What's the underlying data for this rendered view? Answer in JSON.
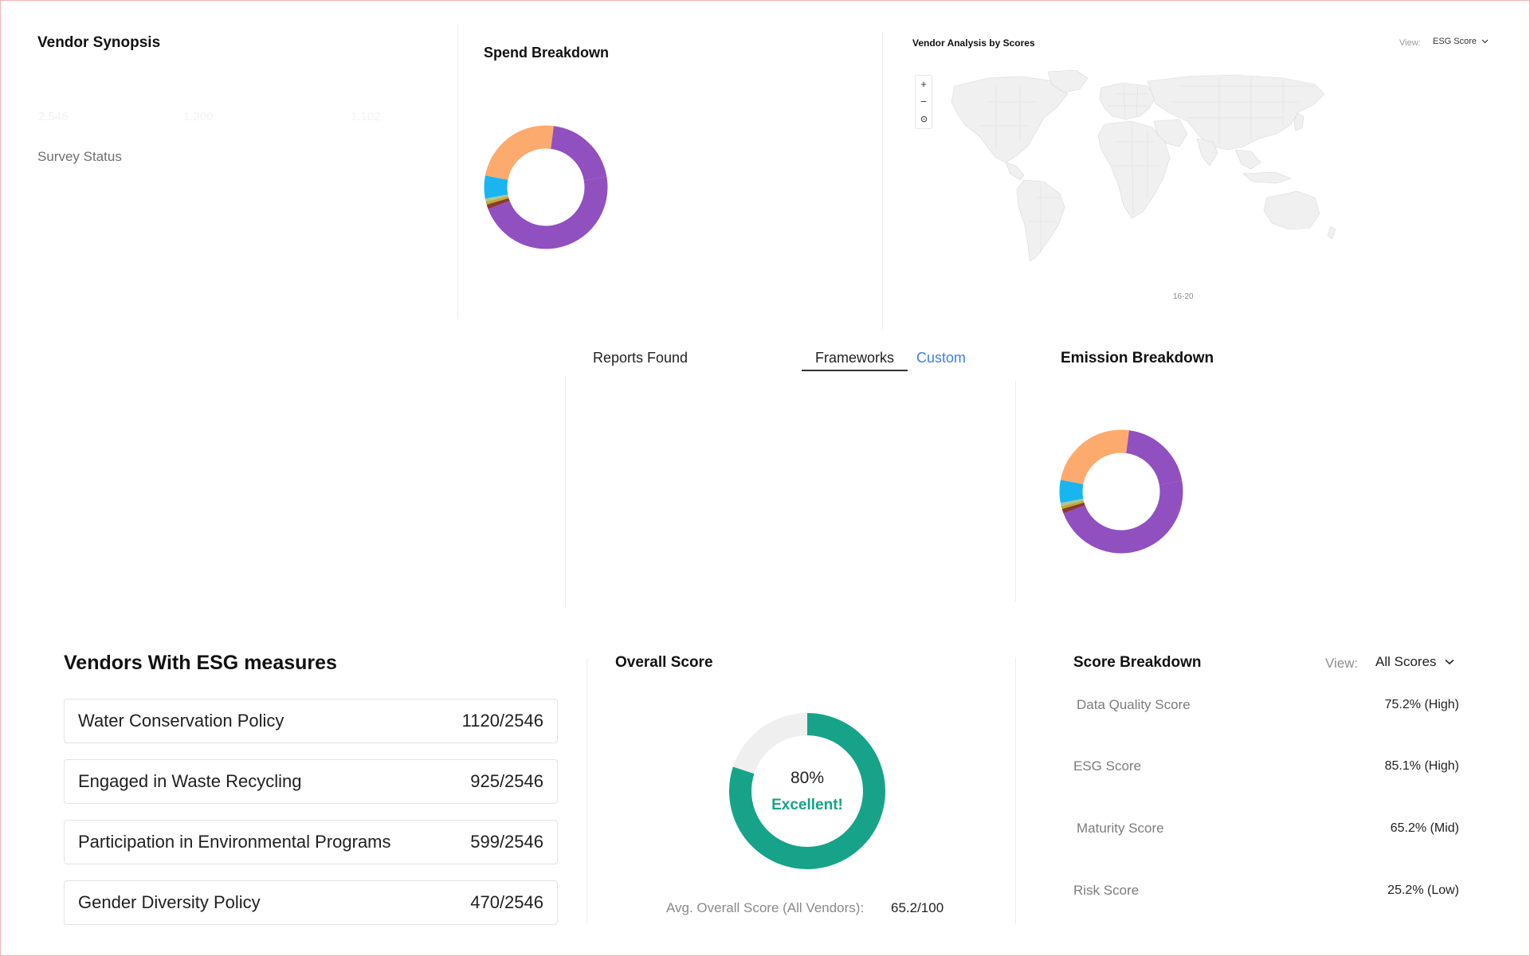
{
  "synopsis": {
    "title": "Vendor Synopsis",
    "faint_stats": [
      "2,546",
      "1,200",
      "1,102"
    ],
    "survey_status_label": "Survey Status"
  },
  "spend": {
    "title": "Spend Breakdown",
    "slices": [
      {
        "fraction": 0.47,
        "color": "#9150c0"
      },
      {
        "fraction": 0.012,
        "color": "#8a3a2f"
      },
      {
        "fraction": 0.008,
        "color": "#c4a832"
      },
      {
        "fraction": 0.008,
        "color": "#a8c89a"
      },
      {
        "fraction": 0.06,
        "color": "#18b5f0"
      },
      {
        "fraction": 0.24,
        "color": "#fdaa6e"
      },
      {
        "fraction": 0.202,
        "color": "#9150c0"
      }
    ]
  },
  "map": {
    "title": "Vendor Analysis by Scores",
    "view_label": "View:",
    "view_value": "ESG Score",
    "zoom_in": "+",
    "zoom_out": "−",
    "reset": "⌂",
    "legend": "16-20"
  },
  "reports": {
    "title": "Reports Found",
    "tab_frameworks": "Frameworks",
    "tab_custom": "Custom"
  },
  "emission": {
    "title": "Emission Breakdown",
    "slices": [
      {
        "fraction": 0.47,
        "color": "#9150c0"
      },
      {
        "fraction": 0.012,
        "color": "#8a3a2f"
      },
      {
        "fraction": 0.008,
        "color": "#c4a832"
      },
      {
        "fraction": 0.008,
        "color": "#a8c89a"
      },
      {
        "fraction": 0.06,
        "color": "#18b5f0"
      },
      {
        "fraction": 0.24,
        "color": "#fdaa6e"
      },
      {
        "fraction": 0.202,
        "color": "#9150c0"
      }
    ]
  },
  "esg": {
    "title": "Vendors With ESG measures",
    "rows": [
      {
        "label": "Water Conservation Policy",
        "value": "1120/2546"
      },
      {
        "label": "Engaged in Waste Recycling",
        "value": "925/2546"
      },
      {
        "label": "Participation in Environmental Programs",
        "value": "599/2546"
      },
      {
        "label": "Gender Diversity Policy",
        "value": "470/2546"
      }
    ]
  },
  "overall": {
    "title": "Overall Score",
    "percent": "80%",
    "score_fraction": 0.8,
    "rating": "Excellent!",
    "avg_label": "Avg. Overall Score (All Vendors):",
    "avg_value": "65.2/100",
    "colors": {
      "fill": "#17a389",
      "track": "#efefef"
    }
  },
  "scores": {
    "title": "Score Breakdown",
    "view_label": "View:",
    "view_value": "All Scores",
    "items": [
      {
        "label": "Data Quality Score",
        "value": "75.2% (High)"
      },
      {
        "label": "ESG Score",
        "value": "85.1% (High)"
      },
      {
        "label": "Maturity Score",
        "value": "65.2% (Mid)"
      },
      {
        "label": "Risk Score",
        "value": "25.2% (Low)"
      }
    ]
  }
}
